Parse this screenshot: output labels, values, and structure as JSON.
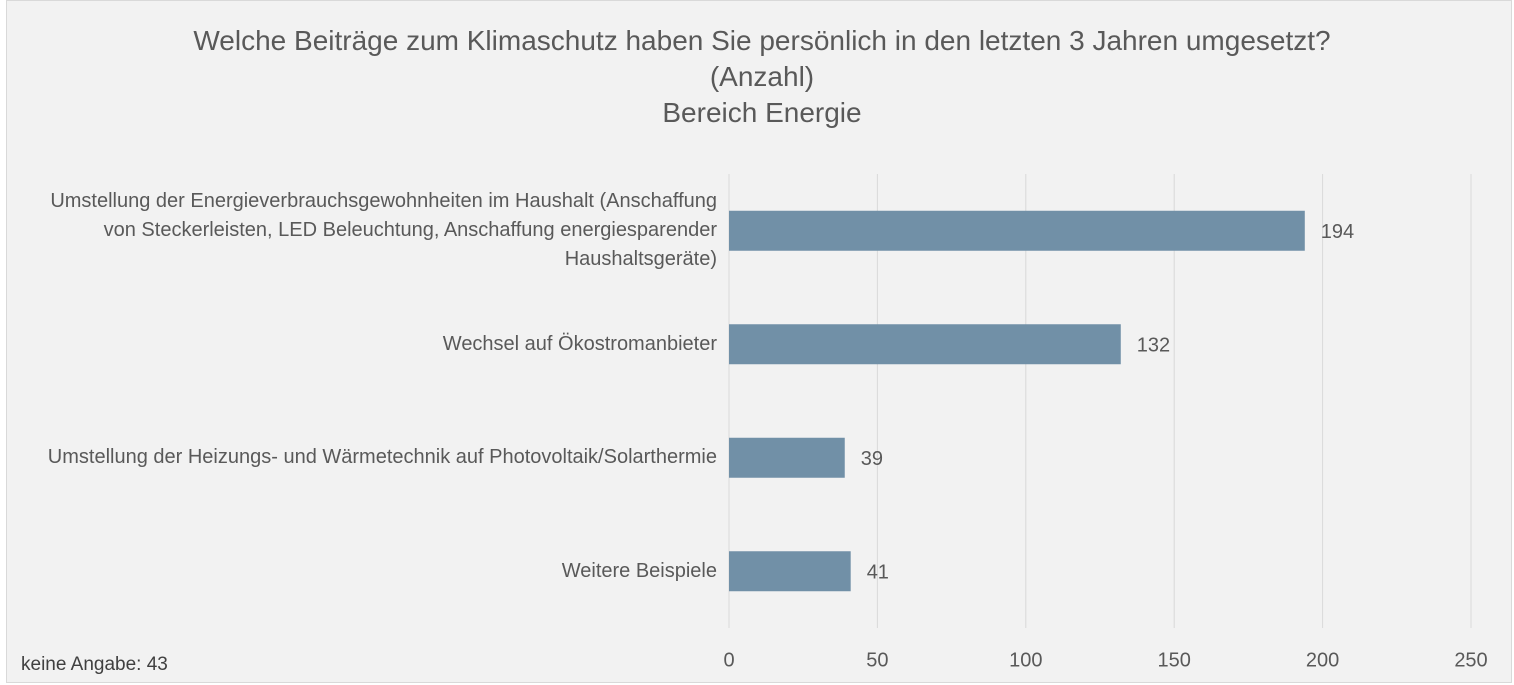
{
  "chart_data": {
    "type": "barh",
    "title": "Welche Beiträge zum Klimaschutz haben Sie persönlich in den letzten 3 Jahren umgesetzt? (Anzahl)",
    "subtitle": "Bereich Energie",
    "categories": [
      "Umstellung der Energieverbrauchsgewohnheiten im Haushalt (Anschaffung von Steckerleisten, LED Beleuchtung, Anschaffung energiesparender Haushaltsgeräte)",
      "Wechsel auf Ökostromanbieter",
      "Umstellung der Heizungs- und Wärmetechnik auf Photovoltaik/Solarthermie",
      "Weitere Beispiele"
    ],
    "values": [
      194,
      132,
      39,
      41
    ],
    "color": "#7190a7",
    "xlim": [
      0,
      250
    ],
    "xticks": [
      0,
      50,
      100,
      150,
      200,
      250
    ],
    "grid": true,
    "annotation": "keine Angabe: 43"
  }
}
